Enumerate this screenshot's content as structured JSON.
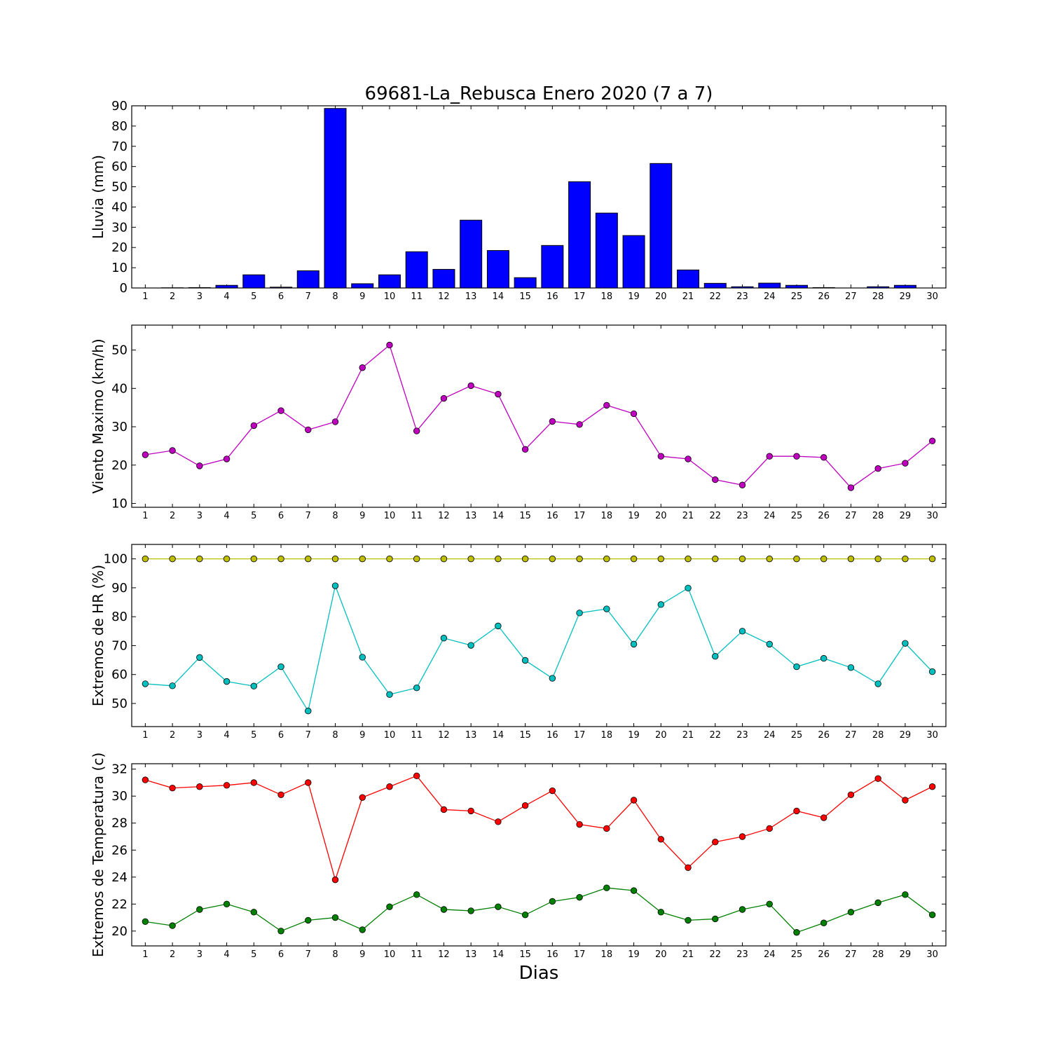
{
  "figure_title": "69681-La_Rebusca Enero 2020  (7 a 7)",
  "xlabel": "Dias",
  "colors": {
    "rain_bar": "#0000ff",
    "wind": "#bf00bf",
    "hr_max": "#bfbf00",
    "hr_min": "#00bfbf",
    "temp_max": "#ff0000",
    "temp_min": "#008000"
  },
  "chart_data": [
    {
      "type": "bar",
      "ylabel": "Lluvia (mm)",
      "ylim": [
        0,
        90
      ],
      "yticks": [
        0,
        10,
        20,
        30,
        40,
        50,
        60,
        70,
        80,
        90
      ],
      "categories": [
        1,
        2,
        3,
        4,
        5,
        6,
        7,
        8,
        9,
        10,
        11,
        12,
        13,
        14,
        15,
        16,
        17,
        18,
        19,
        20,
        21,
        22,
        23,
        24,
        25,
        26,
        27,
        28,
        29,
        30
      ],
      "series": [
        {
          "values": [
            0,
            0.1,
            0.2,
            1.3,
            6.5,
            0.4,
            8.5,
            88.7,
            2.1,
            6.5,
            17.9,
            9.2,
            33.5,
            18.5,
            5.1,
            21,
            52.5,
            37,
            25.9,
            61.5,
            8.9,
            2.3,
            0.6,
            2.4,
            1.3,
            0.2,
            0,
            0.6,
            1.3,
            0
          ],
          "color_key": "rain_bar"
        }
      ]
    },
    {
      "type": "line",
      "ylabel": "Viento Maximo (km/h)",
      "ylim": [
        9,
        56.5
      ],
      "yticks": [
        10,
        20,
        30,
        40,
        50
      ],
      "x": [
        1,
        2,
        3,
        4,
        5,
        6,
        7,
        8,
        9,
        10,
        11,
        12,
        13,
        14,
        15,
        16,
        17,
        18,
        19,
        20,
        21,
        22,
        23,
        24,
        25,
        26,
        27,
        28,
        29,
        30
      ],
      "series": [
        {
          "values": [
            22.7,
            23.8,
            19.8,
            21.6,
            30.3,
            34.2,
            29.2,
            31.3,
            45.4,
            51.3,
            28.9,
            37.4,
            40.7,
            38.5,
            24.1,
            31.4,
            30.6,
            35.6,
            33.4,
            22.3,
            21.6,
            16.2,
            14.8,
            22.3,
            22.3,
            22,
            14.1,
            19.1,
            20.5,
            26.3
          ],
          "color_key": "wind"
        }
      ]
    },
    {
      "type": "line",
      "ylabel": "Extremos de HR (%)",
      "ylim": [
        42,
        105
      ],
      "yticks": [
        50,
        60,
        70,
        80,
        90,
        100
      ],
      "x": [
        1,
        2,
        3,
        4,
        5,
        6,
        7,
        8,
        9,
        10,
        11,
        12,
        13,
        14,
        15,
        16,
        17,
        18,
        19,
        20,
        21,
        22,
        23,
        24,
        25,
        26,
        27,
        28,
        29,
        30
      ],
      "series": [
        {
          "values": [
            100,
            100,
            100,
            100,
            100,
            100,
            100,
            100,
            100,
            100,
            100,
            100,
            100,
            100,
            100,
            100,
            100,
            100,
            100,
            100,
            100,
            100,
            100,
            100,
            100,
            100,
            100,
            100,
            100,
            100
          ],
          "color_key": "hr_max"
        },
        {
          "values": [
            56.8,
            56.1,
            65.9,
            57.6,
            56,
            62.7,
            47.4,
            90.7,
            66,
            53.1,
            55.4,
            72.6,
            70.1,
            76.8,
            64.9,
            58.7,
            81.3,
            82.7,
            70.5,
            84.2,
            89.9,
            66.3,
            75,
            70.5,
            62.7,
            65.6,
            62.4,
            56.8,
            70.8,
            61
          ],
          "color_key": "hr_min"
        }
      ]
    },
    {
      "type": "line",
      "ylabel": "Extremos de Temperatura (c)",
      "ylim": [
        18.9,
        32.4
      ],
      "yticks": [
        20,
        22,
        24,
        26,
        28,
        30,
        32
      ],
      "x": [
        1,
        2,
        3,
        4,
        5,
        6,
        7,
        8,
        9,
        10,
        11,
        12,
        13,
        14,
        15,
        16,
        17,
        18,
        19,
        20,
        21,
        22,
        23,
        24,
        25,
        26,
        27,
        28,
        29,
        30
      ],
      "series": [
        {
          "values": [
            31.2,
            30.6,
            30.7,
            30.8,
            31,
            30.1,
            31,
            23.8,
            29.9,
            30.7,
            31.5,
            29,
            28.9,
            28.1,
            29.3,
            30.4,
            27.9,
            27.6,
            29.7,
            26.8,
            24.7,
            26.6,
            27,
            27.6,
            28.9,
            28.4,
            30.1,
            31.3,
            29.7,
            30.7
          ],
          "color_key": "temp_max"
        },
        {
          "values": [
            20.7,
            20.4,
            21.6,
            22,
            21.4,
            20,
            20.8,
            21,
            20.1,
            21.8,
            22.7,
            21.6,
            21.5,
            21.8,
            21.2,
            22.2,
            22.5,
            23.2,
            23,
            21.4,
            20.8,
            20.9,
            21.6,
            22,
            19.9,
            20.6,
            21.4,
            22.1,
            22.7,
            21.2
          ],
          "color_key": "temp_min"
        }
      ]
    }
  ]
}
